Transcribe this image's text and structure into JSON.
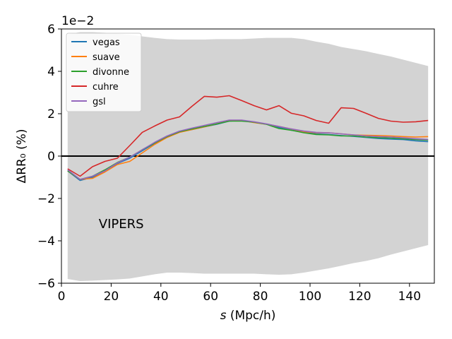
{
  "chart_data": {
    "type": "line",
    "xlabel": "s (Mpc/h)",
    "ylabel": "ΔRR₀ (%)",
    "y_offset_label": "1e−2",
    "annotation": "VIPERS",
    "xlim": [
      0,
      150
    ],
    "ylim": [
      -6,
      6
    ],
    "x_ticks": [
      0,
      20,
      40,
      60,
      80,
      100,
      120,
      140
    ],
    "y_ticks": [
      -6,
      -4,
      -2,
      0,
      2,
      4,
      6
    ],
    "x_tick_labels": [
      "0",
      "20",
      "40",
      "60",
      "80",
      "100",
      "120",
      "140"
    ],
    "y_tick_labels": [
      "−6",
      "−4",
      "−2",
      "0",
      "2",
      "4",
      "6"
    ],
    "legend_position": "top-left",
    "grid": false,
    "band_color": "#d3d3d3",
    "band": {
      "x": [
        2.5,
        7.5,
        12.5,
        17.5,
        22.5,
        27.5,
        32.5,
        37.5,
        42.5,
        47.5,
        52.5,
        57.5,
        62.5,
        67.5,
        72.5,
        77.5,
        82.5,
        87.5,
        92.5,
        97.5,
        102.5,
        107.5,
        112.5,
        117.5,
        122.5,
        127.5,
        132.5,
        137.5,
        142.5,
        147.5
      ],
      "upper": [
        5.75,
        5.85,
        5.85,
        5.82,
        5.78,
        5.72,
        5.65,
        5.58,
        5.52,
        5.5,
        5.5,
        5.5,
        5.52,
        5.52,
        5.52,
        5.55,
        5.58,
        5.58,
        5.58,
        5.52,
        5.4,
        5.3,
        5.15,
        5.05,
        4.95,
        4.82,
        4.7,
        4.55,
        4.4,
        4.25
      ],
      "lower": [
        -5.8,
        -5.9,
        -5.88,
        -5.85,
        -5.82,
        -5.78,
        -5.68,
        -5.58,
        -5.5,
        -5.5,
        -5.52,
        -5.55,
        -5.55,
        -5.55,
        -5.55,
        -5.55,
        -5.58,
        -5.6,
        -5.58,
        -5.5,
        -5.4,
        -5.3,
        -5.18,
        -5.05,
        -4.95,
        -4.82,
        -4.65,
        -4.5,
        -4.35,
        -4.2
      ]
    },
    "x": [
      2.5,
      7.5,
      12.5,
      17.5,
      22.5,
      27.5,
      32.5,
      37.5,
      42.5,
      47.5,
      52.5,
      57.5,
      62.5,
      67.5,
      72.5,
      77.5,
      82.5,
      87.5,
      92.5,
      97.5,
      102.5,
      107.5,
      112.5,
      117.5,
      122.5,
      127.5,
      132.5,
      137.5,
      142.5,
      147.5
    ],
    "series": [
      {
        "name": "vegas",
        "color": "#1f77b4",
        "values": [
          -0.7,
          -1.15,
          -1.0,
          -0.7,
          -0.35,
          -0.1,
          0.25,
          0.6,
          0.9,
          1.15,
          1.25,
          1.38,
          1.5,
          1.65,
          1.68,
          1.6,
          1.5,
          1.35,
          1.22,
          1.12,
          1.05,
          1.02,
          0.97,
          0.93,
          0.88,
          0.83,
          0.8,
          0.78,
          0.72,
          0.68
        ]
      },
      {
        "name": "suave",
        "color": "#ff7f0e",
        "values": [
          -0.7,
          -1.1,
          -1.05,
          -0.75,
          -0.4,
          -0.25,
          0.15,
          0.55,
          0.88,
          1.12,
          1.25,
          1.38,
          1.52,
          1.68,
          1.68,
          1.58,
          1.5,
          1.4,
          1.28,
          1.15,
          1.1,
          1.1,
          1.05,
          1.0,
          0.98,
          0.97,
          0.95,
          0.92,
          0.9,
          0.92
        ]
      },
      {
        "name": "divonne",
        "color": "#2ca02c",
        "values": [
          -0.7,
          -1.1,
          -0.95,
          -0.65,
          -0.3,
          -0.05,
          0.3,
          0.62,
          0.92,
          1.15,
          1.28,
          1.4,
          1.52,
          1.65,
          1.65,
          1.6,
          1.5,
          1.3,
          1.22,
          1.1,
          1.02,
          1.0,
          0.95,
          0.95,
          0.9,
          0.87,
          0.85,
          0.82,
          0.78,
          0.75
        ]
      },
      {
        "name": "cuhre",
        "color": "#d62728",
        "values": [
          -0.6,
          -0.95,
          -0.5,
          -0.25,
          -0.1,
          0.5,
          1.12,
          1.42,
          1.7,
          1.85,
          2.35,
          2.82,
          2.78,
          2.85,
          2.62,
          2.38,
          2.18,
          2.38,
          2.02,
          1.9,
          1.68,
          1.55,
          2.28,
          2.25,
          2.02,
          1.78,
          1.65,
          1.6,
          1.62,
          1.68
        ]
      },
      {
        "name": "gsl",
        "color": "#9467bd",
        "values": [
          -0.65,
          -1.1,
          -0.95,
          -0.7,
          -0.32,
          -0.05,
          0.3,
          0.65,
          0.95,
          1.18,
          1.32,
          1.45,
          1.58,
          1.7,
          1.7,
          1.62,
          1.52,
          1.4,
          1.28,
          1.18,
          1.12,
          1.1,
          1.05,
          1.0,
          0.95,
          0.92,
          0.9,
          0.86,
          0.82,
          0.78
        ]
      }
    ]
  }
}
